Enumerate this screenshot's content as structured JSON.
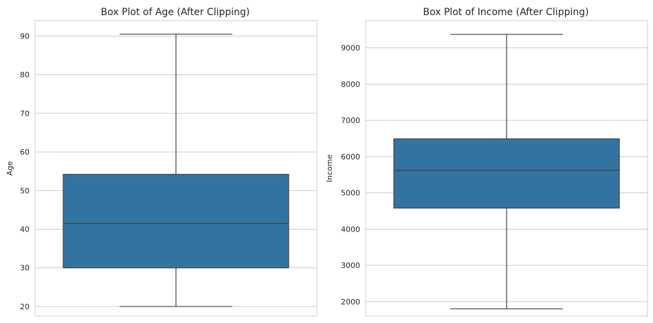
{
  "chart_data": [
    {
      "type": "box",
      "title": "Box Plot of Age (After Clipping)",
      "xlabel": "",
      "ylabel": "Age",
      "ylim": [
        17.5,
        94.0
      ],
      "yticks": [
        20,
        30,
        40,
        50,
        60,
        70,
        80,
        90
      ],
      "grid": true,
      "box": {
        "whisker_low": 20,
        "q1": 30,
        "median": 41.5,
        "q3": 54.2,
        "whisker_high": 90.5
      },
      "color": "#3274a1",
      "edge_color": "#3f3f3f"
    },
    {
      "type": "box",
      "title": "Box Plot of Income (After Clipping)",
      "xlabel": "",
      "ylabel": "Income",
      "ylim": [
        1600,
        9750
      ],
      "yticks": [
        2000,
        3000,
        4000,
        5000,
        6000,
        7000,
        8000,
        9000
      ],
      "grid": true,
      "box": {
        "whisker_low": 1800,
        "q1": 4580,
        "median": 5620,
        "q3": 6490,
        "whisker_high": 9370
      },
      "color": "#3274a1",
      "edge_color": "#3f3f3f"
    }
  ]
}
